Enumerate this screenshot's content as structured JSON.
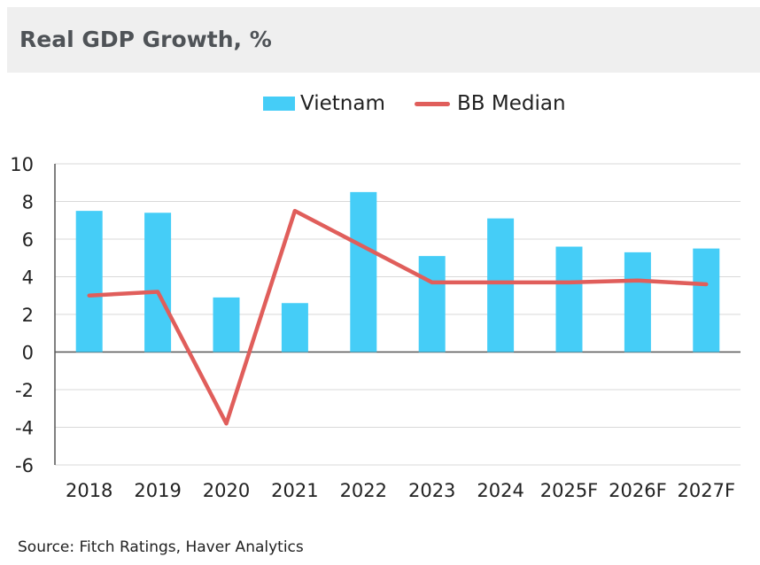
{
  "header": {
    "title": "Real GDP Growth, %"
  },
  "legend": {
    "vietnam": "Vietnam",
    "bb_median": "BB Median"
  },
  "source": "Source: Fitch Ratings, Haver Analytics",
  "colors": {
    "bar": "#45cdf7",
    "line": "#e05e5b",
    "grid": "#d9d9d9",
    "axis": "#555555",
    "title_bg": "#efefef"
  },
  "chart_data": {
    "type": "bar+line",
    "title": "Real GDP Growth, %",
    "categories": [
      "2018",
      "2019",
      "2020",
      "2021",
      "2022",
      "2023",
      "2024",
      "2025F",
      "2026F",
      "2027F"
    ],
    "series": [
      {
        "name": "Vietnam",
        "kind": "bar",
        "values": [
          7.5,
          7.4,
          2.9,
          2.6,
          8.5,
          5.1,
          7.1,
          5.6,
          5.3,
          5.5
        ]
      },
      {
        "name": "BB Median",
        "kind": "line",
        "values": [
          3.0,
          3.2,
          -3.8,
          7.5,
          5.6,
          3.7,
          3.7,
          3.7,
          3.8,
          3.6
        ]
      }
    ],
    "ylim": [
      -6,
      10
    ],
    "yticks": [
      "10",
      "8",
      "6",
      "4",
      "2",
      "0",
      "-2",
      "-4",
      "-6"
    ],
    "grid": true,
    "legend_position": "top-center"
  }
}
